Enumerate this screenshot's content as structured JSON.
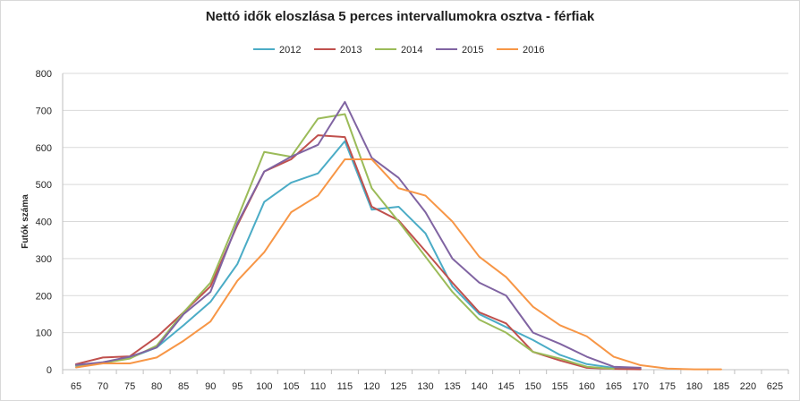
{
  "chart_data": {
    "type": "line",
    "title": "Nettó idők eloszlása 5 perces intervallumokra osztva - férfiak",
    "xlabel": "",
    "ylabel": "Futók száma",
    "ylim": [
      0,
      800
    ],
    "yticks": [
      0,
      100,
      200,
      300,
      400,
      500,
      600,
      700,
      800
    ],
    "grid": "horizontal",
    "legend_position": "top",
    "categories": [
      "65",
      "70",
      "75",
      "80",
      "85",
      "90",
      "95",
      "100",
      "105",
      "110",
      "115",
      "120",
      "125",
      "130",
      "135",
      "140",
      "145",
      "150",
      "155",
      "160",
      "165",
      "170",
      "175",
      "180",
      "185",
      "220",
      "625"
    ],
    "series": [
      {
        "name": "2012",
        "color": "#4bacc6",
        "values": [
          10,
          20,
          32,
          60,
          120,
          183,
          285,
          453,
          505,
          530,
          617,
          432,
          440,
          368,
          225,
          150,
          115,
          80,
          40,
          15,
          5,
          2,
          null,
          null,
          null,
          null,
          null
        ]
      },
      {
        "name": "2013",
        "color": "#c0504d",
        "values": [
          15,
          33,
          36,
          88,
          155,
          225,
          390,
          535,
          568,
          633,
          628,
          440,
          403,
          320,
          235,
          155,
          125,
          48,
          25,
          5,
          2,
          1,
          null,
          null,
          null,
          null,
          null
        ]
      },
      {
        "name": "2014",
        "color": "#9bbb59",
        "values": [
          12,
          18,
          30,
          65,
          155,
          235,
          408,
          588,
          575,
          678,
          690,
          490,
          400,
          305,
          210,
          135,
          100,
          48,
          30,
          8,
          2,
          null,
          null,
          null,
          null,
          null,
          null
        ]
      },
      {
        "name": "2015",
        "color": "#8064a2",
        "values": [
          13,
          20,
          35,
          60,
          150,
          210,
          395,
          535,
          575,
          607,
          723,
          572,
          518,
          425,
          300,
          235,
          200,
          100,
          70,
          35,
          8,
          5,
          null,
          null,
          null,
          null,
          null
        ]
      },
      {
        "name": "2016",
        "color": "#f79646",
        "values": [
          6,
          17,
          17,
          33,
          78,
          130,
          240,
          317,
          425,
          470,
          568,
          568,
          490,
          470,
          400,
          305,
          250,
          170,
          120,
          90,
          35,
          12,
          3,
          1,
          1,
          null,
          null
        ]
      }
    ]
  }
}
